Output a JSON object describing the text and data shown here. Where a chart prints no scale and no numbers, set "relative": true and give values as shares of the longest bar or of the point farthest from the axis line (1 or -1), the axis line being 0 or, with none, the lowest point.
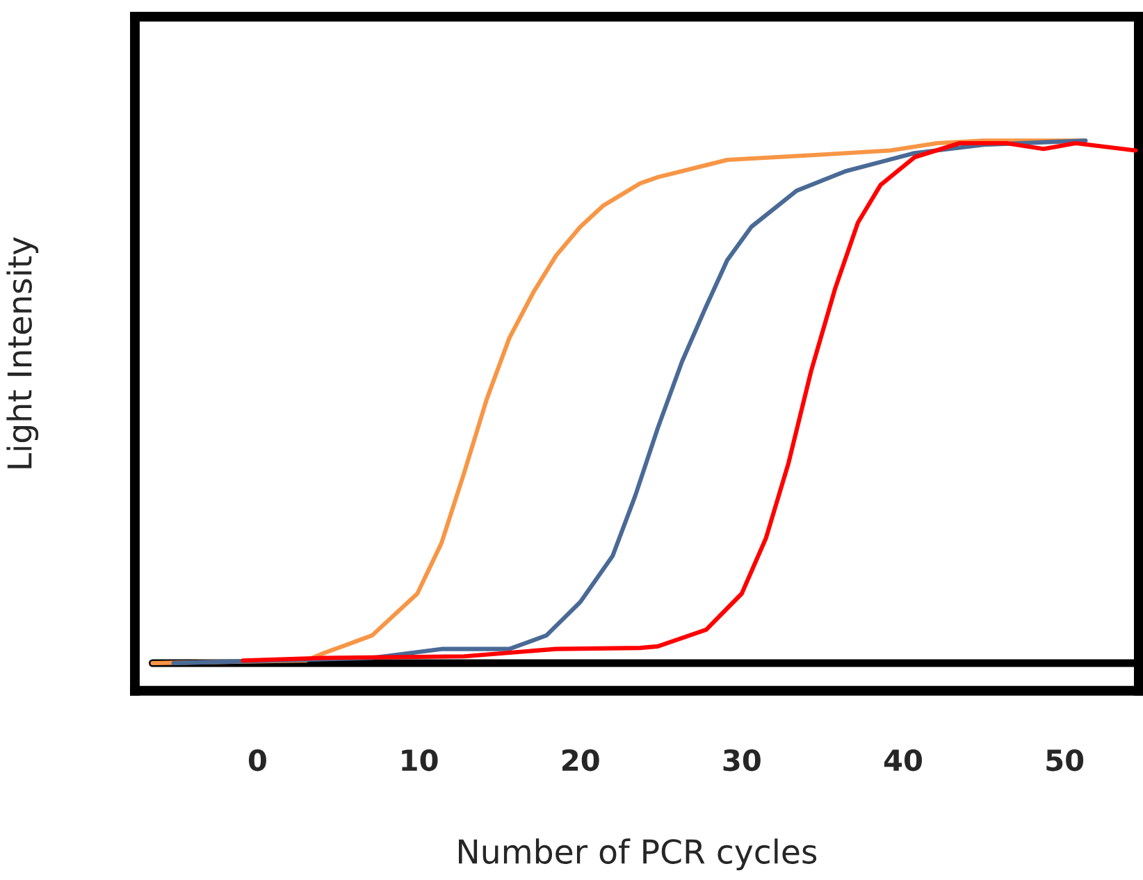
{
  "chart_data": {
    "type": "line",
    "relative": true,
    "xlabel": "Number of PCR cycles",
    "ylabel": "Light Intensity",
    "xlim": [
      -7.6,
      54.6
    ],
    "xticks": [
      0,
      10,
      20,
      30,
      40,
      50
    ],
    "grid": false,
    "legend": false,
    "marker": "none",
    "line_style": "solid",
    "series": [
      {
        "color": "#f79646",
        "x": [
          -6.5,
          3,
          4.1,
          7.1,
          9.9,
          11.4,
          12.8,
          14.2,
          15.6,
          17.1,
          18.5,
          20,
          21.4,
          23.7,
          24.8,
          29.1,
          34.9,
          39.2,
          42.1,
          45,
          51.3
        ],
        "values": [
          0,
          0.005,
          0.019,
          0.053,
          0.133,
          0.23,
          0.364,
          0.505,
          0.622,
          0.71,
          0.78,
          0.835,
          0.875,
          0.918,
          0.93,
          0.963,
          0.973,
          0.981,
          0.995,
          1,
          1
        ]
      },
      {
        "color": "#4a6a96",
        "x": [
          -5.2,
          7.1,
          11.4,
          15.6,
          17.9,
          20,
          22,
          23.4,
          24.8,
          26.3,
          27.8,
          29.1,
          30.6,
          33.4,
          36.4,
          40.7,
          45,
          51.3
        ],
        "values": [
          0,
          0.01,
          0.027,
          0.027,
          0.053,
          0.117,
          0.205,
          0.32,
          0.45,
          0.577,
          0.683,
          0.771,
          0.835,
          0.904,
          0.941,
          0.976,
          0.992,
          1
        ]
      },
      {
        "color": "#ff0000",
        "x": [
          -0.9,
          4.1,
          12.8,
          18.5,
          23.7,
          24.8,
          27.8,
          30,
          31.5,
          32.9,
          34.3,
          35.8,
          37.2,
          38.6,
          40.7,
          43.5,
          46.4,
          48.7,
          50.7,
          54.4
        ],
        "values": [
          0.005,
          0.01,
          0.013,
          0.027,
          0.029,
          0.032,
          0.064,
          0.133,
          0.239,
          0.383,
          0.559,
          0.718,
          0.843,
          0.915,
          0.968,
          0.995,
          0.995,
          0.984,
          0.995,
          0.981
        ]
      }
    ]
  }
}
